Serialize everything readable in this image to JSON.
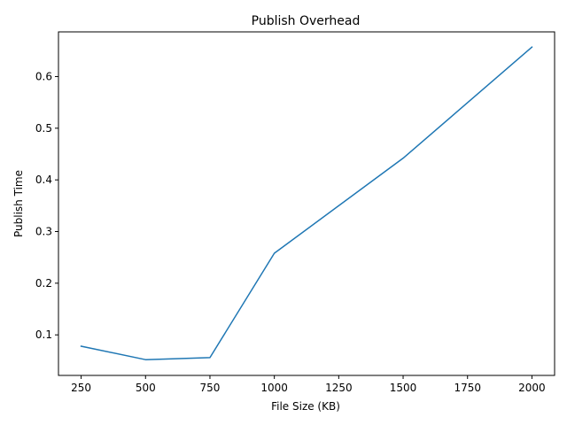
{
  "chart_data": {
    "type": "line",
    "title": "Publish Overhead",
    "xlabel": "File Size (KB)",
    "ylabel": "Publish Time",
    "xlim": [
      162,
      2088
    ],
    "ylim": [
      0.0215,
      0.6865
    ],
    "xticks": [
      250,
      500,
      750,
      1000,
      1250,
      1500,
      1750,
      2000
    ],
    "yticks": [
      0.1,
      0.2,
      0.3,
      0.4,
      0.5,
      0.6
    ],
    "xtick_labels": [
      "250",
      "500",
      "750",
      "1000",
      "1250",
      "1500",
      "1750",
      "2000"
    ],
    "ytick_labels": [
      "0.1",
      "0.2",
      "0.3",
      "0.4",
      "0.5",
      "0.6"
    ],
    "grid": false,
    "series": [
      {
        "color": "#1f77b4",
        "x": [
          250,
          500,
          750,
          1000,
          1500,
          2000
        ],
        "y": [
          0.078,
          0.052,
          0.056,
          0.258,
          0.442,
          0.657
        ]
      }
    ]
  }
}
